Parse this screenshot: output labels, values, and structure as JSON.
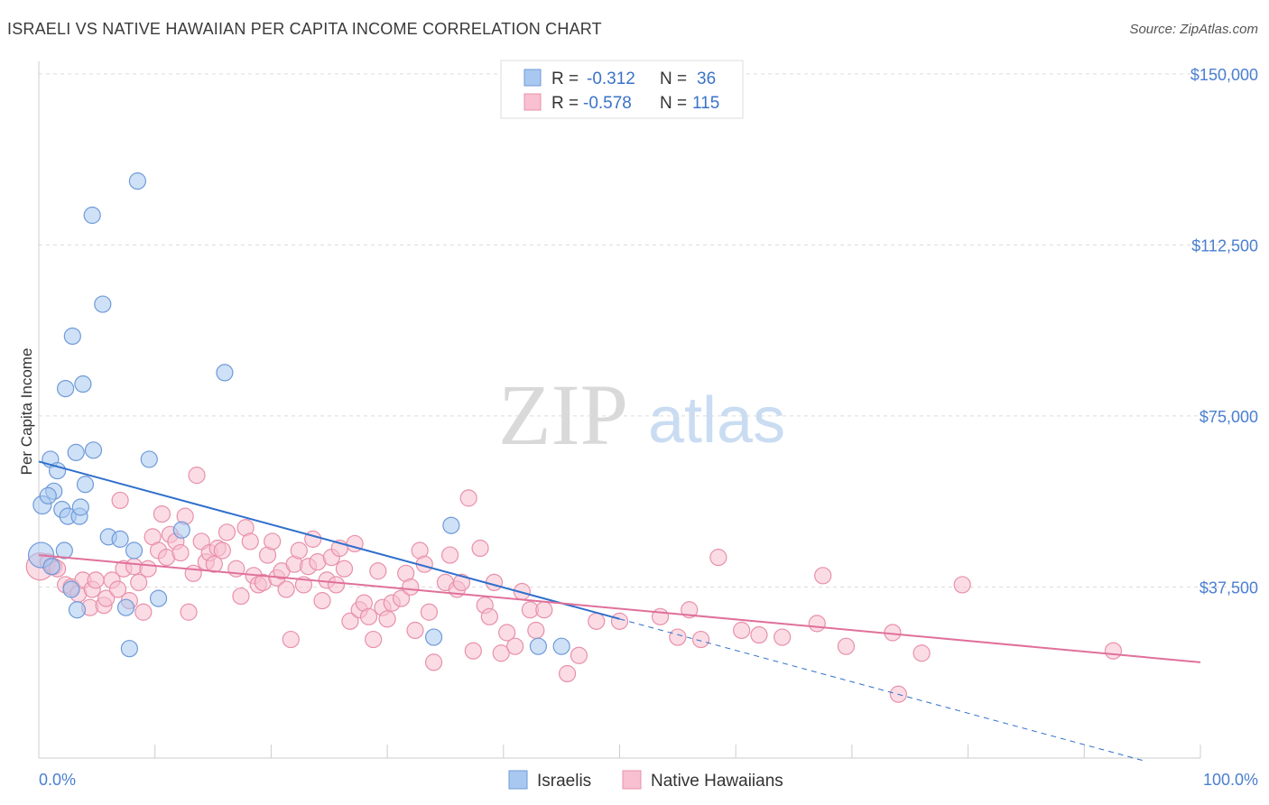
{
  "title": "ISRAELI VS NATIVE HAWAIIAN PER CAPITA INCOME CORRELATION CHART",
  "source": "Source: ZipAtlas.com",
  "watermark": {
    "zip": "ZIP",
    "atlas": "atlas"
  },
  "legend_top": {
    "rows": [
      {
        "r_label": "R =",
        "r_value": "-0.312",
        "n_label": "N =",
        "n_value": "36",
        "color": "#a8c8f0",
        "stroke": "#6f9ad8"
      },
      {
        "r_label": "R =",
        "r_value": "-0.578",
        "n_label": "N =",
        "n_value": "115",
        "color": "#f8c0d0",
        "stroke": "#e890aa"
      }
    ]
  },
  "legend_bottom": [
    {
      "label": "Israelis",
      "color": "#a8c8f0",
      "stroke": "#6f9ad8"
    },
    {
      "label": "Native Hawaiians",
      "color": "#f8c0d0",
      "stroke": "#e890aa"
    }
  ],
  "chart_data": {
    "type": "scatter",
    "title": "ISRAELI VS NATIVE HAWAIIAN PER CAPITA INCOME CORRELATION CHART",
    "xlabel": "",
    "ylabel": "Per Capita Income",
    "xlim": [
      0,
      100
    ],
    "ylim": [
      0,
      155000
    ],
    "x_tick_labels": {
      "left": "0.0%",
      "right": "100.0%"
    },
    "y_ticks": [
      37500,
      75000,
      112500,
      150000
    ],
    "y_tick_labels": [
      "$37,500",
      "$75,000",
      "$112,500",
      "$150,000"
    ],
    "grid": "horizontal dashed",
    "legend_placement": "top-center",
    "series": [
      {
        "name": "Israelis",
        "color": "#a8c8f0",
        "stroke": "#6f9ad8",
        "line_color": "#2f6fcc",
        "regression": {
          "x0": 0,
          "y0": 65000,
          "x1": 50,
          "y1": 30500,
          "dashed_to_x": 95,
          "dashed_to_y": -500
        },
        "points": [
          [
            0.2,
            44500,
            14
          ],
          [
            0.3,
            55500,
            10
          ],
          [
            1.0,
            65500,
            9
          ],
          [
            1.3,
            58500,
            9
          ],
          [
            1.6,
            63000,
            9
          ],
          [
            2.0,
            54500,
            9
          ],
          [
            2.2,
            45500,
            9
          ],
          [
            2.3,
            81000,
            9
          ],
          [
            2.5,
            53000,
            9
          ],
          [
            2.8,
            37000,
            9
          ],
          [
            2.9,
            92500,
            9
          ],
          [
            3.2,
            67000,
            9
          ],
          [
            3.3,
            32500,
            9
          ],
          [
            3.5,
            53000,
            9
          ],
          [
            3.6,
            55000,
            9
          ],
          [
            3.8,
            82000,
            9
          ],
          [
            4.0,
            60000,
            9
          ],
          [
            4.6,
            119000,
            9
          ],
          [
            4.7,
            67500,
            9
          ],
          [
            5.5,
            99500,
            9
          ],
          [
            6.0,
            48500,
            9
          ],
          [
            7.0,
            48000,
            9
          ],
          [
            7.5,
            33000,
            9
          ],
          [
            7.8,
            24000,
            9
          ],
          [
            8.2,
            45500,
            9
          ],
          [
            8.5,
            126500,
            9
          ],
          [
            9.5,
            65500,
            9
          ],
          [
            10.3,
            35000,
            9
          ],
          [
            12.3,
            50000,
            9
          ],
          [
            16.0,
            84500,
            9
          ],
          [
            35.5,
            51000,
            9
          ],
          [
            34.0,
            26500,
            9
          ],
          [
            43.0,
            24500,
            9
          ],
          [
            45.0,
            24500,
            9
          ],
          [
            0.8,
            57500,
            9
          ],
          [
            1.1,
            42000,
            9
          ]
        ]
      },
      {
        "name": "Native Hawaiians",
        "color": "#f8c0d0",
        "stroke": "#e890aa",
        "line_color": "#e0709a",
        "regression": {
          "x0": 0,
          "y0": 44500,
          "x1": 100,
          "y1": 21000
        },
        "points": [
          [
            0.1,
            42000,
            15
          ],
          [
            0.8,
            43000,
            9
          ],
          [
            1.3,
            42000,
            9
          ],
          [
            1.6,
            41500,
            9
          ],
          [
            2.3,
            38000,
            9
          ],
          [
            2.8,
            37500,
            9
          ],
          [
            3.4,
            36000,
            9
          ],
          [
            3.8,
            39000,
            9
          ],
          [
            4.4,
            33000,
            9
          ],
          [
            4.6,
            37000,
            9
          ],
          [
            4.9,
            39000,
            9
          ],
          [
            5.6,
            33500,
            9
          ],
          [
            5.8,
            35000,
            9
          ],
          [
            6.3,
            39000,
            9
          ],
          [
            6.8,
            37000,
            9
          ],
          [
            7.0,
            56500,
            9
          ],
          [
            7.3,
            41500,
            9
          ],
          [
            7.8,
            34500,
            9
          ],
          [
            8.2,
            42000,
            9
          ],
          [
            8.6,
            38500,
            9
          ],
          [
            9.0,
            32000,
            9
          ],
          [
            9.4,
            41500,
            9
          ],
          [
            9.8,
            48500,
            9
          ],
          [
            10.3,
            45500,
            9
          ],
          [
            10.6,
            53500,
            9
          ],
          [
            11.0,
            44000,
            9
          ],
          [
            11.3,
            49000,
            9
          ],
          [
            11.8,
            47500,
            9
          ],
          [
            12.2,
            45000,
            9
          ],
          [
            12.6,
            53000,
            9
          ],
          [
            12.9,
            32000,
            9
          ],
          [
            13.3,
            40500,
            9
          ],
          [
            13.6,
            62000,
            9
          ],
          [
            14.0,
            47500,
            9
          ],
          [
            14.4,
            43000,
            9
          ],
          [
            14.7,
            45000,
            9
          ],
          [
            15.1,
            42500,
            9
          ],
          [
            15.4,
            46000,
            9
          ],
          [
            15.8,
            45500,
            9
          ],
          [
            16.2,
            49500,
            9
          ],
          [
            17.0,
            41500,
            9
          ],
          [
            17.4,
            35500,
            9
          ],
          [
            17.8,
            50500,
            9
          ],
          [
            18.2,
            47500,
            9
          ],
          [
            18.5,
            40000,
            9
          ],
          [
            18.9,
            38000,
            9
          ],
          [
            19.3,
            38500,
            9
          ],
          [
            19.7,
            44500,
            9
          ],
          [
            20.1,
            47500,
            9
          ],
          [
            20.5,
            39500,
            9
          ],
          [
            20.9,
            41000,
            9
          ],
          [
            21.3,
            37000,
            9
          ],
          [
            21.7,
            26000,
            9
          ],
          [
            22.0,
            42500,
            9
          ],
          [
            22.4,
            45500,
            9
          ],
          [
            22.8,
            38000,
            9
          ],
          [
            23.2,
            42000,
            9
          ],
          [
            23.6,
            48000,
            9
          ],
          [
            24.0,
            43000,
            9
          ],
          [
            24.4,
            34500,
            9
          ],
          [
            24.8,
            39000,
            9
          ],
          [
            25.2,
            44000,
            9
          ],
          [
            25.6,
            38000,
            9
          ],
          [
            25.9,
            46000,
            9
          ],
          [
            26.3,
            41500,
            9
          ],
          [
            26.8,
            30000,
            9
          ],
          [
            27.2,
            47000,
            9
          ],
          [
            27.6,
            32500,
            9
          ],
          [
            28.0,
            34000,
            9
          ],
          [
            28.4,
            31000,
            9
          ],
          [
            28.8,
            26000,
            9
          ],
          [
            29.2,
            41000,
            9
          ],
          [
            29.6,
            33000,
            9
          ],
          [
            30.0,
            30500,
            9
          ],
          [
            30.4,
            34000,
            9
          ],
          [
            31.2,
            35000,
            9
          ],
          [
            31.6,
            40500,
            9
          ],
          [
            32.0,
            37500,
            9
          ],
          [
            32.4,
            28000,
            9
          ],
          [
            32.8,
            45500,
            9
          ],
          [
            33.2,
            42500,
            9
          ],
          [
            33.6,
            32000,
            9
          ],
          [
            34.0,
            21000,
            9
          ],
          [
            35.0,
            38500,
            9
          ],
          [
            35.4,
            44500,
            9
          ],
          [
            36.0,
            37000,
            9
          ],
          [
            36.4,
            38500,
            9
          ],
          [
            37.0,
            57000,
            9
          ],
          [
            37.4,
            23500,
            9
          ],
          [
            38.0,
            46000,
            9
          ],
          [
            38.4,
            33500,
            9
          ],
          [
            38.8,
            31000,
            9
          ],
          [
            39.2,
            38500,
            9
          ],
          [
            39.8,
            23000,
            9
          ],
          [
            40.3,
            27500,
            9
          ],
          [
            41.0,
            24500,
            9
          ],
          [
            41.6,
            36500,
            9
          ],
          [
            42.3,
            32500,
            9
          ],
          [
            42.8,
            28000,
            9
          ],
          [
            43.5,
            32500,
            9
          ],
          [
            45.5,
            18500,
            9
          ],
          [
            46.5,
            22500,
            9
          ],
          [
            48.0,
            30000,
            9
          ],
          [
            50.0,
            30000,
            9
          ],
          [
            53.5,
            31000,
            9
          ],
          [
            55.0,
            26500,
            9
          ],
          [
            56.0,
            32500,
            9
          ],
          [
            57.0,
            26000,
            9
          ],
          [
            58.5,
            44000,
            9
          ],
          [
            60.5,
            28000,
            9
          ],
          [
            62.0,
            27000,
            9
          ],
          [
            64.0,
            26500,
            9
          ],
          [
            67.0,
            29500,
            9
          ],
          [
            69.5,
            24500,
            9
          ],
          [
            73.5,
            27500,
            9
          ],
          [
            74.0,
            14000,
            9
          ],
          [
            76.0,
            23000,
            9
          ],
          [
            79.5,
            38000,
            9
          ],
          [
            92.5,
            23500,
            9
          ],
          [
            67.5,
            40000,
            9
          ]
        ]
      }
    ]
  }
}
